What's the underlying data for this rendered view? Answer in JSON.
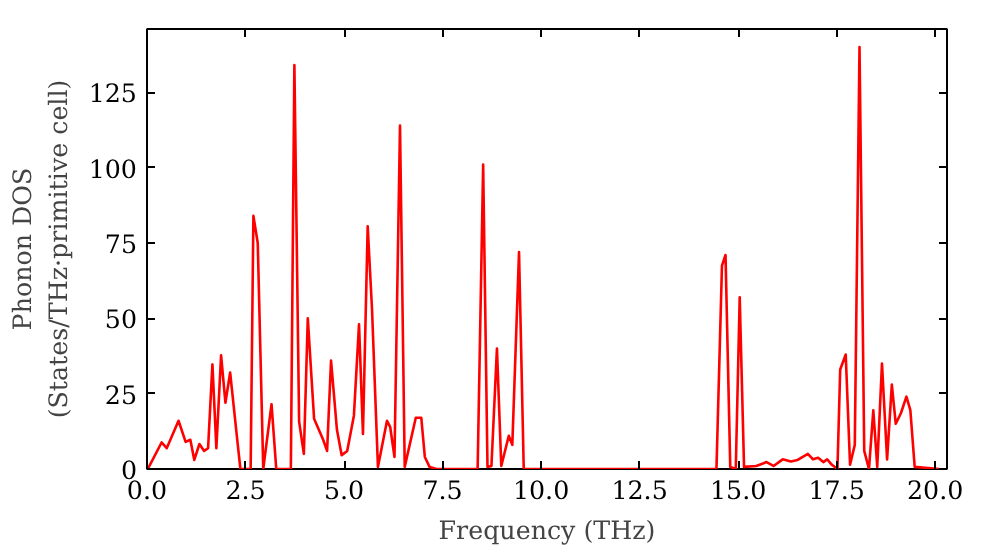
{
  "chart_data": {
    "type": "line",
    "xlabel": "Frequency (THz)",
    "ylabel": "Phonon DOS\n(States/THz·primitive cell)",
    "xlim": [
      0,
      20.3
    ],
    "ylim": [
      0,
      146
    ],
    "xticks": [
      {
        "value": 0,
        "label": "0.0"
      },
      {
        "value": 2.5,
        "label": "2.5"
      },
      {
        "value": 5,
        "label": "5.0"
      },
      {
        "value": 7.5,
        "label": "7.5"
      },
      {
        "value": 10,
        "label": "10.0"
      },
      {
        "value": 12.5,
        "label": "12.5"
      },
      {
        "value": 15,
        "label": "15.0"
      },
      {
        "value": 17.5,
        "label": "17.5"
      },
      {
        "value": 20,
        "label": "20.0"
      }
    ],
    "yticks": [
      0,
      25,
      50,
      75,
      100,
      125
    ],
    "grid": false,
    "series": [
      {
        "color": "#ff0000",
        "x": [
          0.02,
          0.37,
          0.5,
          0.8,
          0.98,
          1.1,
          1.2,
          1.33,
          1.45,
          1.55,
          1.66,
          1.76,
          1.88,
          1.99,
          2.11,
          2.29,
          2.37,
          2.63,
          2.7,
          2.81,
          2.95,
          3.16,
          3.28,
          3.65,
          3.74,
          3.86,
          3.98,
          4.08,
          4.24,
          4.47,
          4.57,
          4.67,
          4.82,
          4.94,
          5.08,
          5.25,
          5.38,
          5.48,
          5.6,
          5.71,
          5.86,
          6.09,
          6.17,
          6.28,
          6.42,
          6.54,
          6.82,
          6.96,
          7.05,
          7.17,
          7.35,
          8.39,
          8.53,
          8.64,
          8.74,
          8.88,
          8.99,
          9.18,
          9.27,
          9.44,
          9.56,
          14.45,
          14.59,
          14.68,
          14.8,
          14.94,
          15.04,
          15.15,
          15.46,
          15.72,
          15.9,
          16.13,
          16.34,
          16.51,
          16.77,
          16.9,
          17.03,
          17.16,
          17.26,
          17.38,
          17.52,
          17.59,
          17.73,
          17.84,
          17.96,
          18.08,
          18.2,
          18.32,
          18.43,
          18.53,
          18.65,
          18.78,
          18.9,
          19.0,
          19.13,
          19.27,
          19.37,
          19.48,
          20.1
        ],
        "values": [
          0,
          8.8,
          6.9,
          16,
          9,
          9.7,
          3,
          8.3,
          6,
          6.9,
          34.7,
          6.9,
          37.7,
          22,
          32,
          9.7,
          0,
          0,
          84,
          75,
          0,
          21.5,
          0,
          0,
          134,
          15.7,
          5,
          50,
          16.7,
          9.7,
          6,
          36,
          13,
          4.6,
          6,
          17.7,
          48,
          11.6,
          80.5,
          53,
          0.7,
          16,
          14,
          4,
          114,
          0.7,
          17,
          17,
          4,
          0.7,
          0,
          0,
          101,
          0.7,
          1,
          40,
          1,
          11,
          8,
          72,
          0,
          0,
          67.5,
          71,
          0.7,
          0,
          57,
          0.7,
          1,
          2.3,
          1,
          3.2,
          2.5,
          3,
          5,
          3.2,
          3.7,
          2.3,
          3.2,
          1.4,
          0,
          33,
          38,
          1.4,
          8,
          140,
          6,
          0,
          19.5,
          0.7,
          35,
          3.2,
          28,
          15,
          18.5,
          24,
          19.5,
          0.7,
          0
        ]
      }
    ]
  }
}
